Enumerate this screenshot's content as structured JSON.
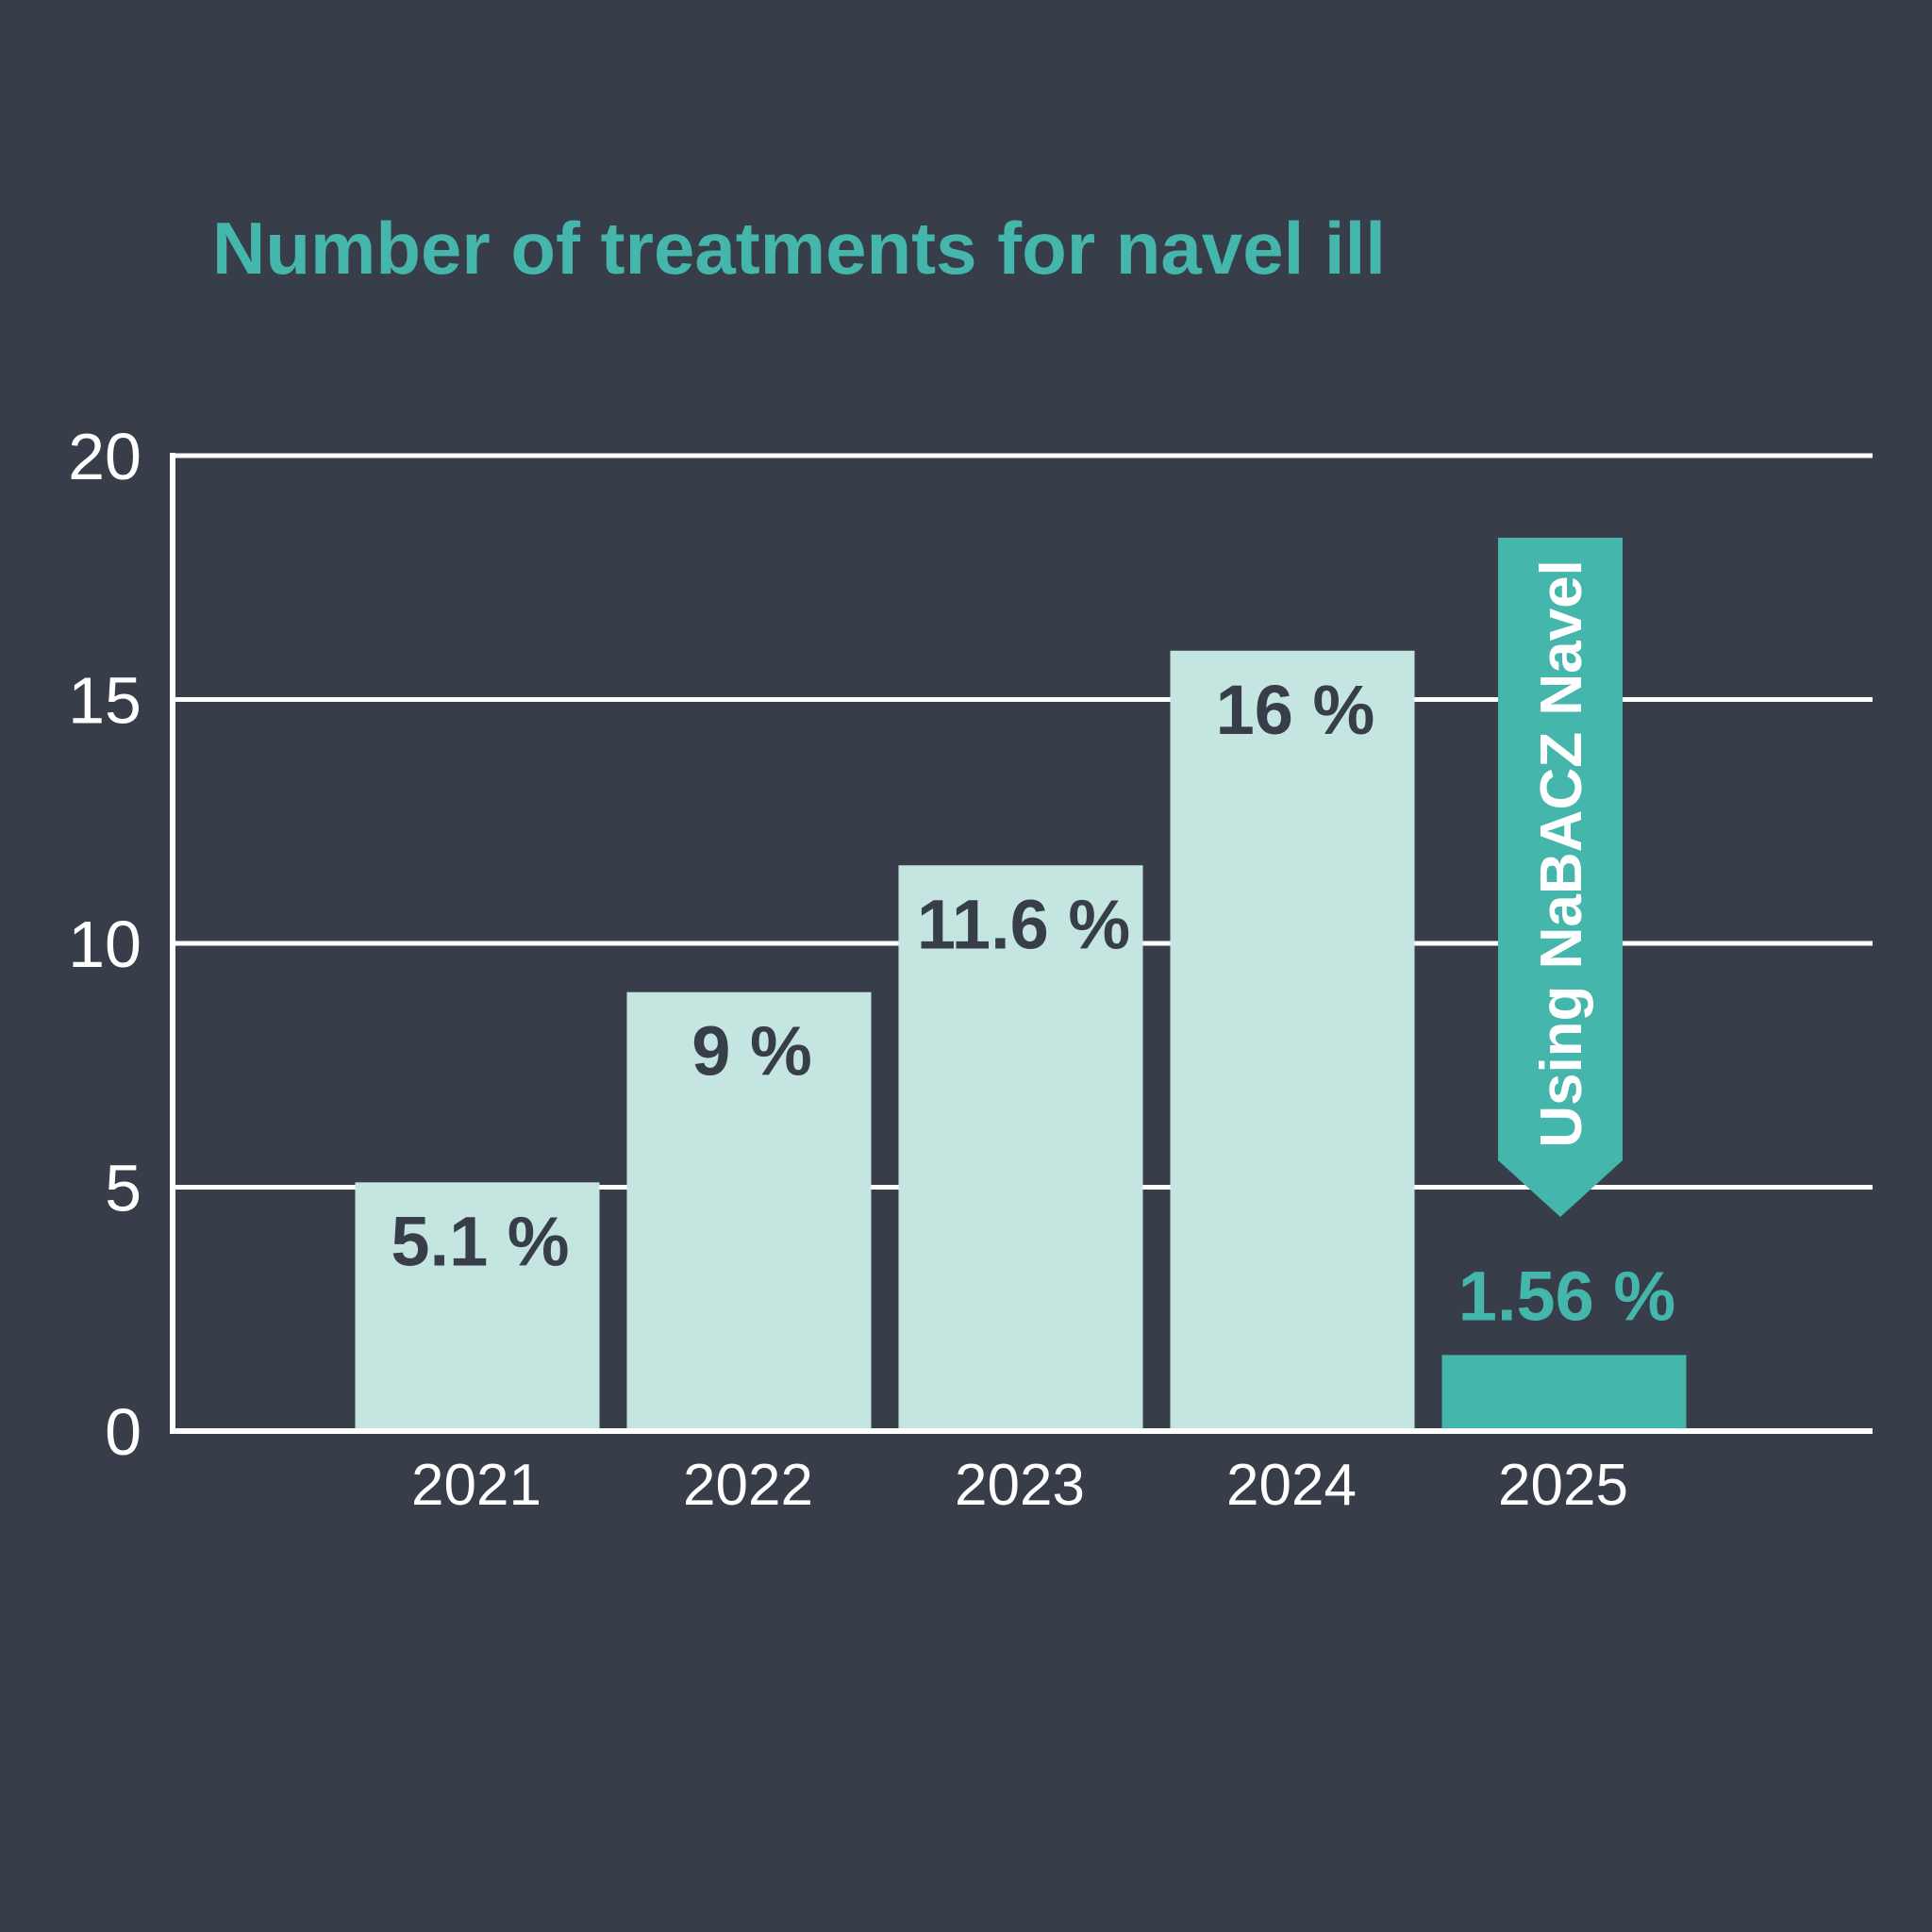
{
  "chart_data": {
    "type": "bar",
    "title": "Number of treatments for navel ill",
    "categories": [
      "2021",
      "2022",
      "2023",
      "2024",
      "2025"
    ],
    "values": [
      5.1,
      9,
      11.6,
      16,
      1.56
    ],
    "data_labels": [
      "5.1 %",
      "9 %",
      "11.6 %",
      "16 %",
      "1.56 %"
    ],
    "highlighted_category": "2025",
    "ylim": [
      0,
      20
    ],
    "yticks": [
      0,
      5,
      10,
      15,
      20
    ],
    "ytick_labels": [
      "0",
      "5",
      "10",
      "15",
      "20"
    ],
    "grid": true,
    "annotation": {
      "text": "Using NaBACZ Navel",
      "shape": "downward arrow",
      "points_to": "2025"
    },
    "colors": {
      "background": "#373e4a",
      "bar": "#c5e5e0",
      "highlight": "#45b6ac",
      "title": "#45b6ac",
      "label_on_bar": "#373e4a",
      "gridline": "#ffffff",
      "axis_text": "#ffffff"
    }
  }
}
